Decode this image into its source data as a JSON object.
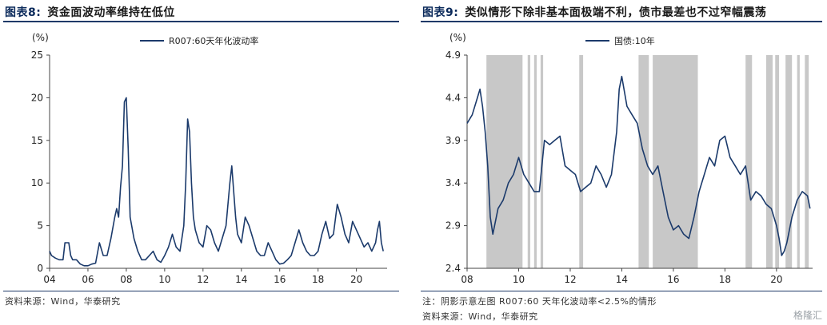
{
  "left": {
    "fig_no": "图表8:",
    "title": "资金面波动率维持在低位",
    "source": "资料来源：Wind，华泰研究"
  },
  "right": {
    "fig_no": "图表9:",
    "title": "类似情形下除非基本面极端不利，债市最差也不过窄幅震荡",
    "note": "注：阴影示意左图 R007:60 天年化波动率<2.5%的情形",
    "source": "资料来源：Wind，华泰研究"
  },
  "logo_text": "格隆汇",
  "colors": {
    "line": "#1b3a6b",
    "shade": "#c8c8c8",
    "accent": "#0b2a5b"
  },
  "chart_data": [
    {
      "type": "line",
      "unit_label": "(%)",
      "ylim": [
        0,
        25
      ],
      "yticks": [
        0,
        5,
        10,
        15,
        20,
        25
      ],
      "xlim": [
        2004,
        2021.6
      ],
      "xticks": [
        2004,
        2006,
        2008,
        2010,
        2012,
        2014,
        2016,
        2018,
        2020
      ],
      "xtick_labels": [
        "04",
        "06",
        "08",
        "10",
        "12",
        "14",
        "16",
        "18",
        "20"
      ],
      "legend_position": "top-center",
      "series": [
        {
          "name": "R007:60天年化波动率",
          "x": [
            2004.0,
            2004.1,
            2004.3,
            2004.5,
            2004.7,
            2004.8,
            2005.0,
            2005.1,
            2005.2,
            2005.4,
            2005.6,
            2005.8,
            2006.0,
            2006.2,
            2006.4,
            2006.6,
            2006.8,
            2007.0,
            2007.2,
            2007.4,
            2007.5,
            2007.6,
            2007.7,
            2007.8,
            2007.9,
            2008.0,
            2008.1,
            2008.2,
            2008.4,
            2008.6,
            2008.8,
            2009.0,
            2009.2,
            2009.4,
            2009.6,
            2009.8,
            2010.0,
            2010.2,
            2010.4,
            2010.6,
            2010.8,
            2011.0,
            2011.1,
            2011.2,
            2011.3,
            2011.4,
            2011.5,
            2011.6,
            2011.8,
            2012.0,
            2012.2,
            2012.4,
            2012.6,
            2012.8,
            2013.0,
            2013.2,
            2013.4,
            2013.5,
            2013.6,
            2013.7,
            2013.8,
            2014.0,
            2014.2,
            2014.4,
            2014.6,
            2014.8,
            2015.0,
            2015.2,
            2015.4,
            2015.6,
            2015.8,
            2016.0,
            2016.2,
            2016.4,
            2016.6,
            2016.8,
            2017.0,
            2017.2,
            2017.4,
            2017.6,
            2017.8,
            2018.0,
            2018.2,
            2018.4,
            2018.6,
            2018.8,
            2019.0,
            2019.2,
            2019.4,
            2019.6,
            2019.8,
            2020.0,
            2020.2,
            2020.4,
            2020.6,
            2020.8,
            2021.0,
            2021.1,
            2021.2,
            2021.3,
            2021.4
          ],
          "values": [
            2.0,
            1.5,
            1.2,
            1.0,
            1.0,
            3.0,
            3.0,
            1.5,
            1.0,
            1.0,
            0.5,
            0.3,
            0.3,
            0.5,
            0.6,
            3.0,
            1.5,
            1.5,
            3.5,
            6.0,
            7.0,
            6.0,
            9.5,
            12.0,
            19.5,
            20.0,
            14.0,
            6.0,
            3.5,
            2.0,
            1.0,
            1.0,
            1.5,
            2.0,
            1.0,
            0.7,
            1.5,
            2.5,
            4.0,
            2.5,
            2.0,
            5.0,
            10.0,
            17.5,
            16.0,
            10.0,
            6.0,
            4.5,
            3.0,
            2.5,
            5.0,
            4.5,
            3.0,
            2.0,
            3.5,
            5.0,
            10.0,
            12.0,
            9.0,
            6.0,
            4.0,
            3.0,
            6.0,
            5.0,
            3.5,
            2.0,
            1.5,
            1.5,
            3.0,
            2.0,
            1.0,
            0.5,
            0.6,
            1.0,
            1.5,
            3.0,
            4.5,
            3.0,
            2.0,
            1.5,
            1.5,
            2.0,
            4.0,
            5.5,
            3.5,
            4.0,
            7.5,
            6.0,
            4.0,
            3.0,
            5.5,
            4.5,
            3.5,
            2.5,
            3.0,
            2.0,
            3.0,
            4.5,
            5.5,
            3.0,
            2.0
          ]
        }
      ]
    },
    {
      "type": "line",
      "unit_label": "(%)",
      "ylim": [
        2.4,
        4.9
      ],
      "yticks": [
        2.4,
        2.9,
        3.4,
        3.9,
        4.4,
        4.9
      ],
      "xlim": [
        2008,
        2021.4
      ],
      "xticks": [
        2008,
        2010,
        2012,
        2014,
        2016,
        2018,
        2020
      ],
      "xtick_labels": [
        "08",
        "10",
        "12",
        "14",
        "16",
        "18",
        "20"
      ],
      "legend_position": "top-left",
      "shaded_ranges": [
        [
          2008.75,
          2010.15
        ],
        [
          2010.35,
          2010.45
        ],
        [
          2010.6,
          2010.7
        ],
        [
          2010.85,
          2010.95
        ],
        [
          2012.35,
          2012.5
        ],
        [
          2014.65,
          2015.05
        ],
        [
          2015.2,
          2016.95
        ],
        [
          2018.8,
          2019.05
        ],
        [
          2019.6,
          2019.85
        ],
        [
          2019.95,
          2020.1
        ],
        [
          2020.35,
          2020.6
        ],
        [
          2020.8,
          2020.9
        ],
        [
          2021.1,
          2021.25
        ]
      ],
      "series": [
        {
          "name": "国债:10年",
          "x": [
            2008.0,
            2008.2,
            2008.4,
            2008.5,
            2008.6,
            2008.7,
            2008.8,
            2008.9,
            2009.0,
            2009.2,
            2009.4,
            2009.6,
            2009.8,
            2010.0,
            2010.2,
            2010.4,
            2010.6,
            2010.8,
            2011.0,
            2011.2,
            2011.4,
            2011.6,
            2011.8,
            2012.0,
            2012.2,
            2012.4,
            2012.6,
            2012.8,
            2013.0,
            2013.2,
            2013.4,
            2013.6,
            2013.8,
            2013.9,
            2014.0,
            2014.2,
            2014.4,
            2014.6,
            2014.8,
            2015.0,
            2015.2,
            2015.4,
            2015.6,
            2015.8,
            2016.0,
            2016.2,
            2016.4,
            2016.6,
            2016.8,
            2017.0,
            2017.2,
            2017.4,
            2017.6,
            2017.8,
            2018.0,
            2018.2,
            2018.4,
            2018.6,
            2018.8,
            2019.0,
            2019.2,
            2019.4,
            2019.6,
            2019.8,
            2020.0,
            2020.1,
            2020.2,
            2020.3,
            2020.4,
            2020.6,
            2020.8,
            2021.0,
            2021.2,
            2021.3
          ],
          "values": [
            4.1,
            4.2,
            4.4,
            4.5,
            4.3,
            4.0,
            3.6,
            3.0,
            2.8,
            3.1,
            3.2,
            3.4,
            3.5,
            3.7,
            3.5,
            3.4,
            3.3,
            3.3,
            3.9,
            3.85,
            3.9,
            3.95,
            3.6,
            3.55,
            3.5,
            3.3,
            3.35,
            3.4,
            3.6,
            3.5,
            3.35,
            3.5,
            4.0,
            4.5,
            4.65,
            4.3,
            4.2,
            4.1,
            3.8,
            3.6,
            3.5,
            3.6,
            3.3,
            3.0,
            2.85,
            2.9,
            2.8,
            2.75,
            3.0,
            3.3,
            3.5,
            3.7,
            3.6,
            3.9,
            3.95,
            3.7,
            3.6,
            3.5,
            3.6,
            3.2,
            3.3,
            3.25,
            3.15,
            3.1,
            2.9,
            2.75,
            2.55,
            2.6,
            2.7,
            3.0,
            3.2,
            3.3,
            3.25,
            3.1
          ]
        }
      ]
    }
  ]
}
